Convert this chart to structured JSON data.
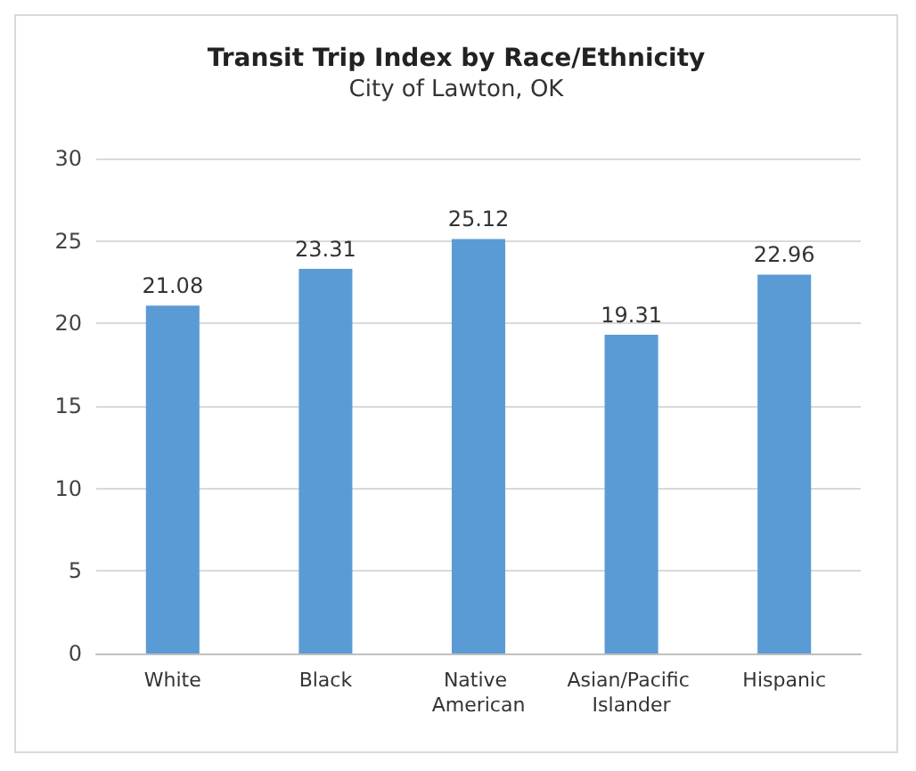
{
  "chart_data": {
    "type": "bar",
    "title": "Transit Trip Index by Race/Ethnicity",
    "subtitle": "City of Lawton, OK",
    "categories": [
      "White",
      "Black",
      "Native American",
      "Asian/Pacific Islander",
      "Hispanic"
    ],
    "values": [
      21.08,
      23.31,
      25.12,
      19.31,
      22.96
    ],
    "color": "#5b9bd5",
    "ylim": [
      0,
      30
    ],
    "yticks": [
      0,
      5,
      10,
      15,
      20,
      25,
      30
    ],
    "grid": "y",
    "data_labels": true
  }
}
